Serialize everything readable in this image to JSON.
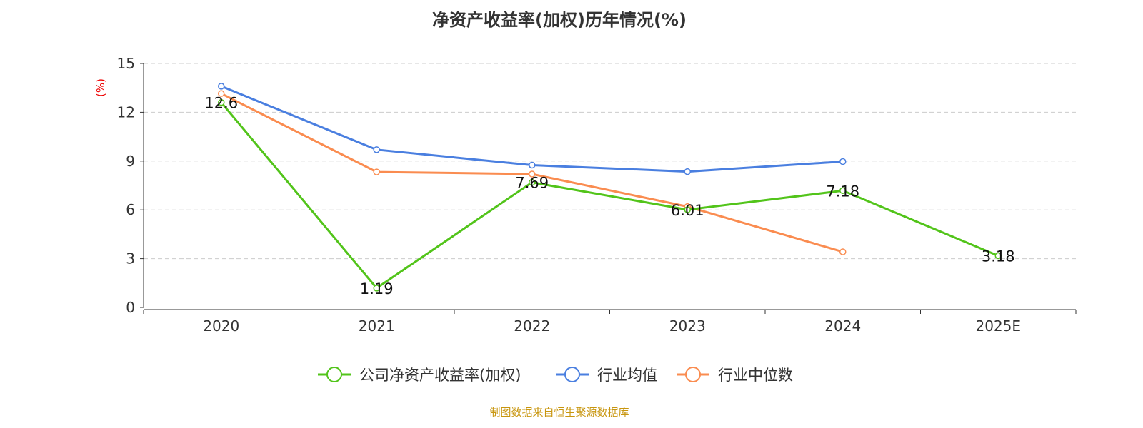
{
  "chart_data": {
    "type": "line",
    "title": "净资产收益率(加权)历年情况(%)",
    "ylabel": "(%)",
    "categories": [
      "2020",
      "2021",
      "2022",
      "2023",
      "2024",
      "2025E"
    ],
    "ylim": [
      0,
      15
    ],
    "yticks": [
      0,
      3,
      6,
      9,
      12,
      15
    ],
    "grid": true,
    "legend_position": "bottom",
    "series": [
      {
        "name": "公司净资产收益率(加权)",
        "color": "#52c41a",
        "values": [
          12.6,
          1.19,
          7.69,
          6.01,
          7.18,
          3.18
        ],
        "labels": [
          "12.6",
          "1.19",
          "7.69",
          "6.01",
          "7.18",
          "3.18"
        ]
      },
      {
        "name": "行业均值",
        "color": "#4a7fe0",
        "values": [
          13.6,
          9.7,
          8.75,
          8.35,
          8.97,
          null
        ]
      },
      {
        "name": "行业中位数",
        "color": "#fa8c50",
        "values": [
          13.15,
          8.33,
          8.2,
          6.2,
          3.42,
          null
        ]
      }
    ]
  },
  "source": "制图数据来自恒生聚源数据库"
}
